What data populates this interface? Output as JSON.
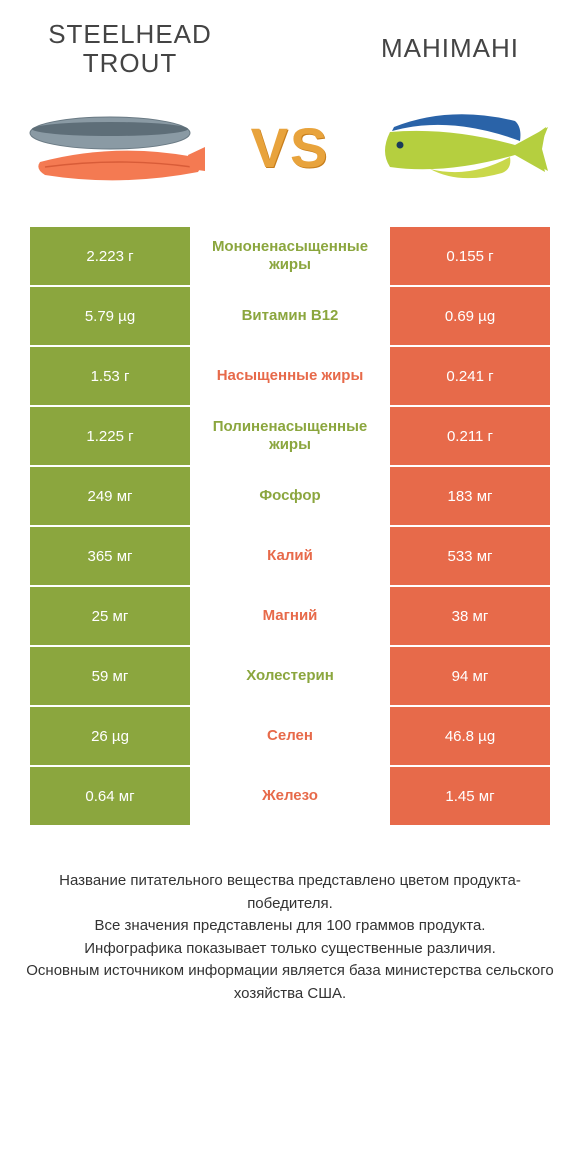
{
  "header": {
    "left_title": "STEELHEAD TROUT",
    "right_title": "MAHIMAHI",
    "vs_text": "VS"
  },
  "colors": {
    "left_product": "#8ba63e",
    "right_product": "#e76a4a",
    "vs_text": "#e8a33c",
    "background": "#ffffff",
    "text": "#333333",
    "neutral_mid_bg": "#ffffff"
  },
  "table": {
    "left_bg": "#8ba63e",
    "right_bg": "#e76a4a",
    "rows": [
      {
        "left": "2.223 г",
        "mid": "Мононенасыщенные жиры",
        "right": "0.155 г",
        "winner": "left"
      },
      {
        "left": "5.79 µg",
        "mid": "Витамин B12",
        "right": "0.69 µg",
        "winner": "left"
      },
      {
        "left": "1.53 г",
        "mid": "Насыщенные жиры",
        "right": "0.241 г",
        "winner": "right"
      },
      {
        "left": "1.225 г",
        "mid": "Полиненасыщенные жиры",
        "right": "0.211 г",
        "winner": "left"
      },
      {
        "left": "249 мг",
        "mid": "Фосфор",
        "right": "183 мг",
        "winner": "left"
      },
      {
        "left": "365 мг",
        "mid": "Калий",
        "right": "533 мг",
        "winner": "right"
      },
      {
        "left": "25 мг",
        "mid": "Магний",
        "right": "38 мг",
        "winner": "right"
      },
      {
        "left": "59 мг",
        "mid": "Холестерин",
        "right": "94 мг",
        "winner": "left"
      },
      {
        "left": "26 µg",
        "mid": "Селен",
        "right": "46.8 µg",
        "winner": "right"
      },
      {
        "left": "0.64 мг",
        "mid": "Железо",
        "right": "1.45 мг",
        "winner": "right"
      }
    ]
  },
  "footer": {
    "line1": "Название питательного вещества представлено цветом продукта-победителя.",
    "line2": "Все значения представлены для 100 граммов продукта.",
    "line3": "Инфографика показывает только существенные различия.",
    "line4": "Основным источником информации является база министерства сельского хозяйства США."
  },
  "fonts": {
    "title_fontsize": 26,
    "vs_fontsize": 56,
    "cell_fontsize": 15,
    "footer_fontsize": 15
  }
}
